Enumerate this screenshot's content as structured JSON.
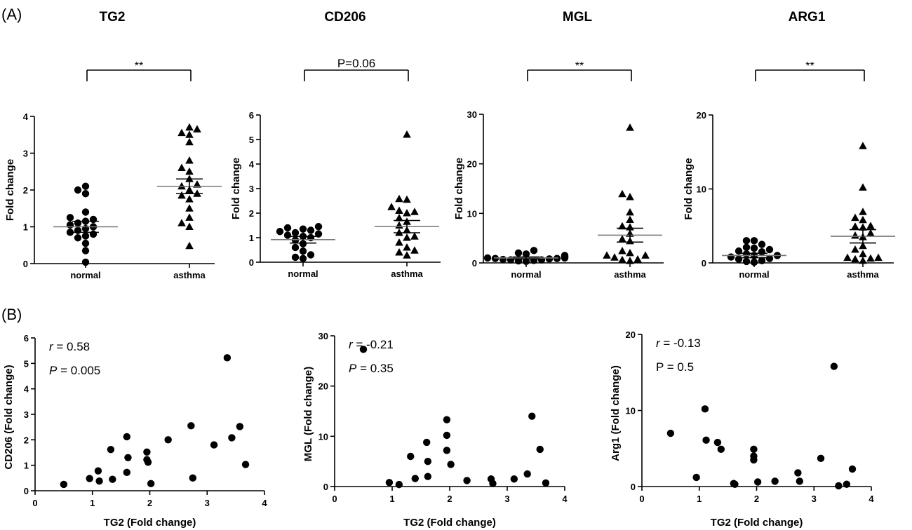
{
  "panel_labels": {
    "a": "(A)",
    "b": "(B)"
  },
  "chart_data": [
    {
      "type": "scatter",
      "panel": "A",
      "title": "TG2",
      "ylabel": "Fold change",
      "ylim": [
        0,
        4
      ],
      "yticks": [
        "0",
        "1",
        "2",
        "3",
        "4"
      ],
      "categories": [
        "normal",
        "asthma"
      ],
      "significance": "**",
      "series": [
        {
          "marker": "circle",
          "values": [
            0.04,
            0.35,
            0.55,
            0.7,
            0.75,
            0.8,
            0.85,
            0.9,
            0.95,
            1.0,
            1.05,
            1.1,
            1.15,
            1.2,
            1.25,
            1.4,
            1.9,
            2.0,
            2.1
          ],
          "mean": 1.0,
          "sem_low": 0.85,
          "sem_high": 1.15
        },
        {
          "marker": "triangle",
          "values": [
            0.48,
            1.0,
            1.1,
            1.25,
            1.5,
            1.75,
            1.85,
            1.9,
            2.0,
            2.1,
            2.15,
            2.3,
            2.5,
            2.6,
            2.8,
            3.3,
            3.5,
            3.55,
            3.65,
            3.7
          ],
          "mean": 2.1,
          "sem_low": 1.9,
          "sem_high": 2.3
        }
      ]
    },
    {
      "type": "scatter",
      "panel": "A",
      "title": "CD206",
      "ylabel": "Fold change",
      "ylim": [
        0,
        6
      ],
      "yticks": [
        "0",
        "1",
        "2",
        "3",
        "4",
        "5",
        "6"
      ],
      "categories": [
        "normal",
        "asthma"
      ],
      "significance": "P=0.06",
      "series": [
        {
          "marker": "circle",
          "values": [
            0.15,
            0.2,
            0.3,
            0.45,
            0.6,
            0.75,
            0.9,
            1.0,
            1.05,
            1.1,
            1.15,
            1.2,
            1.25,
            1.3,
            1.35,
            1.4,
            1.45
          ],
          "mean": 0.92,
          "sem_low": 0.78,
          "sem_high": 1.05
        },
        {
          "marker": "triangle",
          "values": [
            0.28,
            0.4,
            0.48,
            0.6,
            0.8,
            1.0,
            1.05,
            1.2,
            1.3,
            1.5,
            1.65,
            1.8,
            2.0,
            2.05,
            2.1,
            2.25,
            2.55,
            2.58,
            5.2
          ],
          "mean": 1.45,
          "sem_low": 1.2,
          "sem_high": 1.7
        }
      ]
    },
    {
      "type": "scatter",
      "panel": "A",
      "title": "MGL",
      "ylabel": "Fold change",
      "ylim": [
        0,
        30
      ],
      "yticks": [
        "0",
        "10",
        "20",
        "30"
      ],
      "categories": [
        "normal",
        "asthma"
      ],
      "significance": "**",
      "series": [
        {
          "marker": "circle",
          "values": [
            0.3,
            0.4,
            0.5,
            0.6,
            0.7,
            0.8,
            0.9,
            1.0,
            1.0,
            1.1,
            1.2,
            1.3,
            1.5,
            1.8,
            2.0,
            2.5,
            0.6,
            0.9
          ],
          "mean": 1.0,
          "sem_low": 0.8,
          "sem_high": 1.2
        },
        {
          "marker": "triangle",
          "values": [
            0.4,
            0.6,
            0.7,
            1.1,
            1.5,
            1.5,
            2.0,
            2.4,
            4.4,
            4.8,
            5.9,
            7.2,
            7.4,
            8.7,
            10.2,
            13.3,
            13.9,
            27.3
          ],
          "mean": 5.6,
          "sem_low": 4.2,
          "sem_high": 7.0
        }
      ]
    },
    {
      "type": "scatter",
      "panel": "A",
      "title": "ARG1",
      "ylabel": "Fold change",
      "ylim": [
        0,
        20
      ],
      "yticks": [
        "0",
        "10",
        "20"
      ],
      "categories": [
        "normal",
        "asthma"
      ],
      "significance": "**",
      "series": [
        {
          "marker": "circle",
          "values": [
            0.1,
            0.2,
            0.3,
            0.5,
            0.6,
            0.8,
            1.0,
            1.0,
            1.2,
            1.5,
            1.6,
            1.8,
            2.0,
            2.1,
            2.5,
            3.0,
            3.0
          ],
          "mean": 1.0,
          "sem_low": 0.7,
          "sem_high": 1.3
        },
        {
          "marker": "triangle",
          "values": [
            0.3,
            0.5,
            0.6,
            0.7,
            0.7,
            1.2,
            1.8,
            2.3,
            3.5,
            3.7,
            4.0,
            4.8,
            4.9,
            5.0,
            5.8,
            6.1,
            6.9,
            10.2,
            15.8
          ],
          "mean": 3.6,
          "sem_low": 2.7,
          "sem_high": 4.5
        }
      ]
    },
    {
      "type": "scatter",
      "panel": "B",
      "xlabel": "TG2 (Fold change)",
      "ylabel": "CD206  (Fold change)",
      "xlim": [
        0,
        4
      ],
      "ylim": [
        0,
        6
      ],
      "xticks": [
        "0",
        "1",
        "2",
        "3",
        "4"
      ],
      "yticks": [
        "0",
        "1",
        "2",
        "3",
        "4",
        "5",
        "6"
      ],
      "r_label": "r",
      "r_value": " = 0.58",
      "p_label": "P",
      "p_value": " = 0.005",
      "points": [
        [
          0.5,
          0.25
        ],
        [
          0.95,
          0.48
        ],
        [
          1.1,
          0.78
        ],
        [
          1.12,
          0.38
        ],
        [
          1.35,
          0.45
        ],
        [
          1.32,
          1.62
        ],
        [
          1.6,
          2.12
        ],
        [
          1.62,
          1.3
        ],
        [
          1.6,
          0.72
        ],
        [
          1.95,
          1.52
        ],
        [
          1.95,
          1.22
        ],
        [
          1.97,
          1.12
        ],
        [
          2.02,
          0.28
        ],
        [
          2.32,
          2.0
        ],
        [
          2.72,
          2.55
        ],
        [
          2.75,
          0.5
        ],
        [
          3.12,
          1.8
        ],
        [
          3.35,
          5.22
        ],
        [
          3.43,
          2.08
        ],
        [
          3.57,
          2.52
        ],
        [
          3.67,
          1.03
        ]
      ]
    },
    {
      "type": "scatter",
      "panel": "B",
      "xlabel": "TG2 (Fold change)",
      "ylabel": "MGL  (Fold change)",
      "xlim": [
        0,
        4
      ],
      "ylim": [
        0,
        30
      ],
      "xticks": [
        "0",
        "1",
        "2",
        "3",
        "4"
      ],
      "yticks": [
        "0",
        "10",
        "20",
        "30"
      ],
      "r_label": "r",
      "r_value": " = -0.21",
      "p_label": "P",
      "p_value": " = 0.35",
      "points": [
        [
          0.5,
          27.3
        ],
        [
          0.95,
          0.8
        ],
        [
          1.12,
          0.4
        ],
        [
          1.32,
          6.0
        ],
        [
          1.4,
          1.6
        ],
        [
          1.6,
          8.8
        ],
        [
          1.62,
          5.0
        ],
        [
          1.62,
          2.0
        ],
        [
          1.95,
          13.3
        ],
        [
          1.95,
          10.2
        ],
        [
          1.95,
          7.2
        ],
        [
          2.02,
          4.4
        ],
        [
          2.3,
          1.2
        ],
        [
          2.72,
          1.5
        ],
        [
          2.75,
          0.6
        ],
        [
          3.12,
          1.5
        ],
        [
          3.35,
          2.5
        ],
        [
          3.43,
          14.0
        ],
        [
          3.57,
          7.4
        ],
        [
          3.67,
          0.7
        ]
      ]
    },
    {
      "type": "scatter",
      "panel": "B",
      "xlabel": "TG2 (Fold change)",
      "ylabel": "Arg1  (Fold change)",
      "xlim": [
        0,
        4
      ],
      "ylim": [
        0,
        20
      ],
      "xticks": [
        "0",
        "1",
        "2",
        "3",
        "4"
      ],
      "yticks": [
        "0",
        "10",
        "20"
      ],
      "r_label": "r",
      "r_value": " = -0.13",
      "p_label": "",
      "p_value": "P = 0.5",
      "points": [
        [
          0.5,
          7.0
        ],
        [
          0.95,
          1.2
        ],
        [
          1.1,
          10.2
        ],
        [
          1.12,
          6.1
        ],
        [
          1.32,
          5.8
        ],
        [
          1.38,
          4.9
        ],
        [
          1.6,
          0.4
        ],
        [
          1.62,
          0.3
        ],
        [
          1.95,
          4.9
        ],
        [
          1.95,
          4.0
        ],
        [
          1.95,
          3.5
        ],
        [
          2.02,
          0.6
        ],
        [
          2.32,
          0.7
        ],
        [
          2.72,
          1.8
        ],
        [
          2.75,
          0.7
        ],
        [
          3.12,
          3.7
        ],
        [
          3.35,
          15.8
        ],
        [
          3.43,
          0.1
        ],
        [
          3.57,
          0.3
        ],
        [
          3.67,
          2.3
        ]
      ]
    }
  ]
}
